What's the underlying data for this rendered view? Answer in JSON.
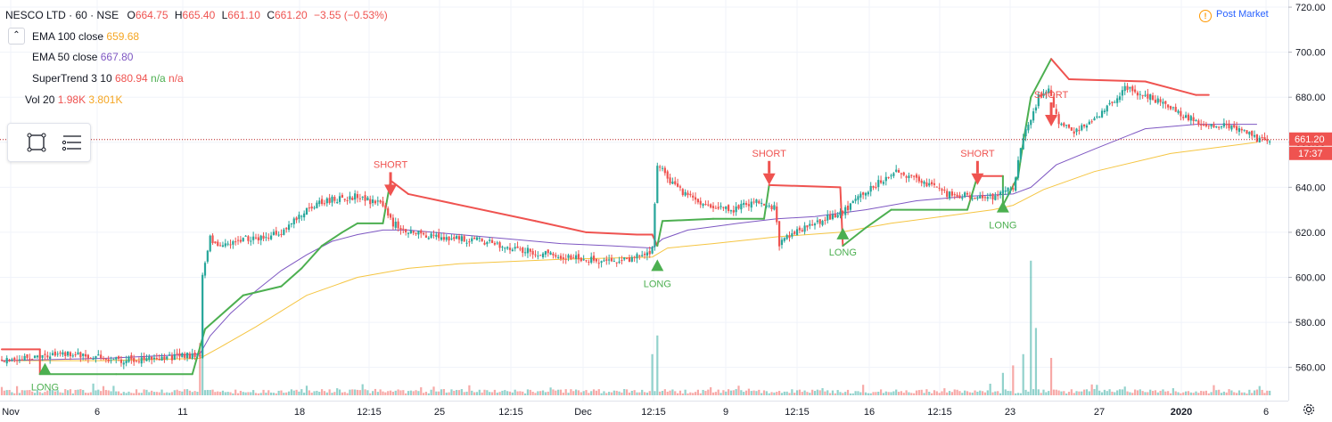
{
  "header": {
    "symbol": "NESCO LTD · 60 · NSE",
    "o_label": "O",
    "o": "664.75",
    "h_label": "H",
    "h": "665.40",
    "l_label": "L",
    "l": "661.10",
    "c_label": "C",
    "c": "661.20",
    "change": "−3.55 (−0.53%)"
  },
  "indicators": [
    {
      "name": "EMA 100 close",
      "value": "659.68",
      "color": "#f5a623"
    },
    {
      "name": "EMA 50 close",
      "value": "667.80",
      "color": "#7e57c2"
    },
    {
      "name": "SuperTrend 3 10",
      "value": "680.94",
      "extra1": "n/a",
      "extra2": "n/a",
      "color": "#ef5350"
    },
    {
      "name": "Vol 20",
      "value": "1.98K",
      "value2": "3.801K",
      "color": "#ef5350",
      "color2": "#f5a623"
    }
  ],
  "status": {
    "label": "Post Market",
    "icon": "!"
  },
  "toolbar_icons": [
    "rectangle-select-icon",
    "list-lines-icon"
  ],
  "colors": {
    "up": "#26a69a",
    "down": "#ef5350",
    "supertrend_up": "#4caf50",
    "supertrend_down": "#ef5350",
    "ema100": "#f5c542",
    "ema50": "#7e57c2",
    "price_line": "#b71c1c"
  },
  "chart_data": {
    "type": "candlestick",
    "x_axis_ticks": [
      "Nov",
      "6",
      "11",
      "18",
      "12:15",
      "25",
      "12:15",
      "Dec",
      "12:15",
      "9",
      "12:15",
      "16",
      "12:15",
      "23",
      "27",
      "2020",
      "6"
    ],
    "y_axis_ticks": [
      560,
      580,
      600,
      620,
      640,
      660,
      680,
      700,
      720
    ],
    "ylim": [
      548,
      722
    ],
    "last_price": "661.20",
    "countdown": "17:37",
    "signals": [
      {
        "label": "LONG",
        "bar": 17,
        "price": 560
      },
      {
        "label": "SHORT",
        "bar": 153,
        "price": 638
      },
      {
        "label": "LONG",
        "bar": 258,
        "price": 606
      },
      {
        "label": "SHORT",
        "bar": 302,
        "price": 643
      },
      {
        "label": "LONG",
        "bar": 331,
        "price": 620
      },
      {
        "label": "SHORT",
        "bar": 384,
        "price": 643
      },
      {
        "label": "LONG",
        "bar": 394,
        "price": 632
      },
      {
        "label": "SHORT",
        "bar": 413,
        "price": 669
      }
    ],
    "series": [
      {
        "name": "price",
        "points": [
          [
            0,
            563
          ],
          [
            8,
            564
          ],
          [
            16,
            565
          ],
          [
            24,
            566
          ],
          [
            32,
            565
          ],
          [
            40,
            564
          ],
          [
            48,
            563
          ],
          [
            56,
            564
          ],
          [
            64,
            564
          ],
          [
            72,
            565
          ],
          [
            78,
            566
          ],
          [
            79,
            600
          ],
          [
            82,
            617
          ],
          [
            86,
            614
          ],
          [
            94,
            617
          ],
          [
            102,
            618
          ],
          [
            110,
            620
          ],
          [
            118,
            628
          ],
          [
            126,
            634
          ],
          [
            134,
            635
          ],
          [
            140,
            636
          ],
          [
            150,
            632
          ],
          [
            154,
            624
          ],
          [
            160,
            620
          ],
          [
            170,
            618
          ],
          [
            180,
            617
          ],
          [
            190,
            616
          ],
          [
            200,
            613
          ],
          [
            210,
            611
          ],
          [
            220,
            609
          ],
          [
            230,
            608
          ],
          [
            240,
            607
          ],
          [
            250,
            609
          ],
          [
            256,
            612
          ],
          [
            258,
            651
          ],
          [
            262,
            644
          ],
          [
            268,
            638
          ],
          [
            278,
            632
          ],
          [
            288,
            630
          ],
          [
            298,
            634
          ],
          [
            304,
            631
          ],
          [
            306,
            615
          ],
          [
            312,
            620
          ],
          [
            322,
            625
          ],
          [
            332,
            630
          ],
          [
            342,
            640
          ],
          [
            352,
            647
          ],
          [
            362,
            642
          ],
          [
            372,
            637
          ],
          [
            382,
            636
          ],
          [
            392,
            636
          ],
          [
            398,
            640
          ],
          [
            402,
            662
          ],
          [
            408,
            680
          ],
          [
            412,
            685
          ],
          [
            416,
            668
          ],
          [
            422,
            665
          ],
          [
            432,
            672
          ],
          [
            442,
            684
          ],
          [
            452,
            680
          ],
          [
            462,
            674
          ],
          [
            472,
            668
          ],
          [
            482,
            667
          ],
          [
            490,
            665
          ],
          [
            494,
            661
          ]
        ]
      },
      {
        "name": "EMA 50",
        "points": [
          [
            0,
            563
          ],
          [
            40,
            564
          ],
          [
            78,
            566
          ],
          [
            82,
            574
          ],
          [
            90,
            584
          ],
          [
            100,
            594
          ],
          [
            110,
            603
          ],
          [
            120,
            610
          ],
          [
            130,
            616
          ],
          [
            140,
            619
          ],
          [
            150,
            621
          ],
          [
            160,
            621
          ],
          [
            180,
            619
          ],
          [
            200,
            617
          ],
          [
            220,
            615
          ],
          [
            240,
            614
          ],
          [
            256,
            613
          ],
          [
            260,
            617
          ],
          [
            270,
            621
          ],
          [
            290,
            624
          ],
          [
            305,
            626
          ],
          [
            320,
            627
          ],
          [
            340,
            630
          ],
          [
            360,
            634
          ],
          [
            380,
            636
          ],
          [
            398,
            637
          ],
          [
            405,
            640
          ],
          [
            415,
            650
          ],
          [
            430,
            657
          ],
          [
            450,
            666
          ],
          [
            470,
            668
          ],
          [
            494,
            668
          ]
        ]
      },
      {
        "name": "EMA 100",
        "points": [
          [
            0,
            563
          ],
          [
            40,
            563
          ],
          [
            78,
            564
          ],
          [
            86,
            569
          ],
          [
            100,
            578
          ],
          [
            120,
            592
          ],
          [
            140,
            600
          ],
          [
            160,
            604
          ],
          [
            180,
            606
          ],
          [
            200,
            607
          ],
          [
            220,
            608
          ],
          [
            256,
            609
          ],
          [
            262,
            613
          ],
          [
            280,
            615
          ],
          [
            305,
            618
          ],
          [
            330,
            620
          ],
          [
            350,
            624
          ],
          [
            370,
            627
          ],
          [
            390,
            630
          ],
          [
            398,
            632
          ],
          [
            410,
            639
          ],
          [
            430,
            647
          ],
          [
            460,
            655
          ],
          [
            494,
            660
          ]
        ]
      },
      {
        "name": "SuperTrend",
        "points": [
          [
            0,
            568
          ],
          [
            15,
            568
          ],
          [
            15,
            557
          ],
          [
            45,
            557
          ],
          [
            75,
            557
          ],
          [
            80,
            577
          ],
          [
            86,
            583
          ],
          [
            95,
            592
          ],
          [
            110,
            596
          ],
          [
            118,
            604
          ],
          [
            126,
            614
          ],
          [
            134,
            620
          ],
          [
            140,
            624
          ],
          [
            150,
            624
          ],
          [
            153,
            643
          ],
          [
            160,
            637
          ],
          [
            210,
            625
          ],
          [
            230,
            620
          ],
          [
            250,
            619
          ],
          [
            256,
            619
          ],
          [
            258,
            614
          ],
          [
            260,
            625
          ],
          [
            280,
            626
          ],
          [
            300,
            626
          ],
          [
            302,
            641
          ],
          [
            330,
            640
          ],
          [
            331,
            614
          ],
          [
            340,
            622
          ],
          [
            350,
            630
          ],
          [
            380,
            630
          ],
          [
            384,
            645
          ],
          [
            394,
            645
          ],
          [
            394,
            632
          ],
          [
            400,
            645
          ],
          [
            402,
            660
          ],
          [
            405,
            680
          ],
          [
            413,
            697
          ],
          [
            420,
            688
          ],
          [
            450,
            687
          ],
          [
            460,
            684
          ],
          [
            470,
            681
          ],
          [
            475,
            681
          ]
        ]
      }
    ]
  }
}
